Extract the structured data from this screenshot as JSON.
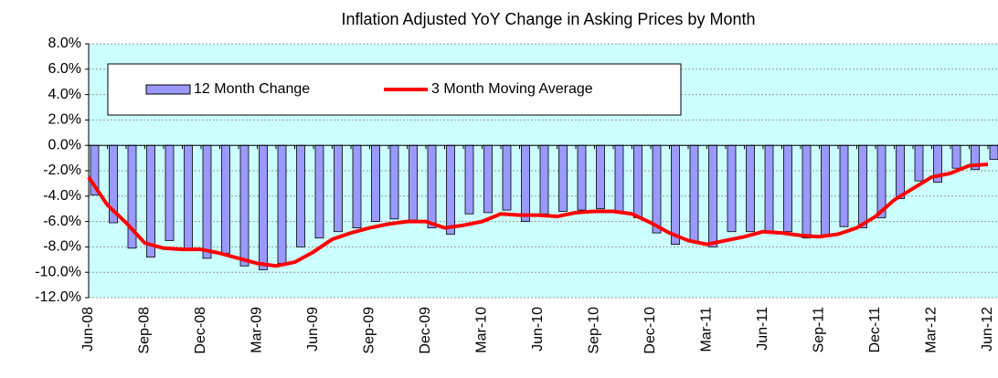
{
  "chart_data": {
    "type": "bar",
    "title": "Inflation Adjusted YoY Change in Asking Prices by Month",
    "categories": [
      "Jun-08",
      null,
      null,
      "Sep-08",
      null,
      null,
      "Dec-08",
      null,
      null,
      "Mar-09",
      null,
      null,
      "Jun-09",
      null,
      null,
      "Sep-09",
      null,
      null,
      "Dec-09",
      null,
      null,
      "Mar-10",
      null,
      null,
      "Jun-10",
      null,
      null,
      "Sep-10",
      null,
      null,
      "Dec-10",
      null,
      null,
      "Mar-11",
      null,
      null,
      "Jun-11",
      null,
      null,
      "Sep-11",
      null,
      null,
      "Dec-11",
      null,
      null,
      "Mar-12",
      null,
      null,
      "Jun-12"
    ],
    "series": [
      {
        "name": "12 Month Change",
        "type": "bar",
        "color": "#9999ff",
        "values": [
          -3.9,
          -6.1,
          -8.1,
          -8.8,
          -7.5,
          -8.2,
          -8.9,
          -8.5,
          -9.5,
          -9.8,
          -9.3,
          -8.0,
          -7.3,
          -6.8,
          -6.5,
          -6.0,
          -5.8,
          -5.9,
          -6.5,
          -7.0,
          -5.4,
          -5.3,
          -5.1,
          -6.0,
          -5.4,
          -5.2,
          -5.1,
          -5.0,
          -5.2,
          -5.7,
          -6.9,
          -7.8,
          -7.6,
          -8.0,
          -6.8,
          -6.8,
          -6.8,
          -6.8,
          -7.3,
          -7.1,
          -6.4,
          -6.5,
          -5.7,
          -4.2,
          -2.8,
          -2.9,
          -1.8,
          -1.9,
          -1.1
        ]
      },
      {
        "name": "3 Month Moving Average",
        "type": "line",
        "color": "#ff0000",
        "values": [
          -2.5,
          -4.7,
          -6.1,
          -7.7,
          -8.1,
          -8.2,
          -8.2,
          -8.5,
          -8.9,
          -9.3,
          -9.5,
          -9.2,
          -8.4,
          -7.4,
          -6.9,
          -6.5,
          -6.2,
          -6.0,
          -6.0,
          -6.5,
          -6.3,
          -6.0,
          -5.4,
          -5.5,
          -5.5,
          -5.6,
          -5.3,
          -5.2,
          -5.2,
          -5.4,
          -6.1,
          -6.9,
          -7.5,
          -7.8,
          -7.5,
          -7.2,
          -6.8,
          -6.9,
          -7.1,
          -7.2,
          -7.0,
          -6.5,
          -5.6,
          -4.3,
          -3.4,
          -2.5,
          -2.2,
          -1.6,
          -1.5
        ]
      }
    ],
    "ylim": [
      -12,
      8
    ],
    "yticks": [
      {
        "value": -12,
        "label": "-12.0%"
      },
      {
        "value": -10,
        "label": "-10.0%"
      },
      {
        "value": -8,
        "label": "-8.0%"
      },
      {
        "value": -6,
        "label": "-6.0%"
      },
      {
        "value": -4,
        "label": "-4.0%"
      },
      {
        "value": -2,
        "label": "-2.0%"
      },
      {
        "value": 0,
        "label": "0.0%"
      },
      {
        "value": 2,
        "label": "2.0%"
      },
      {
        "value": 4,
        "label": "4.0%"
      },
      {
        "value": 6,
        "label": "6.0%"
      },
      {
        "value": 8,
        "label": "8.0%"
      }
    ],
    "grid": true
  }
}
